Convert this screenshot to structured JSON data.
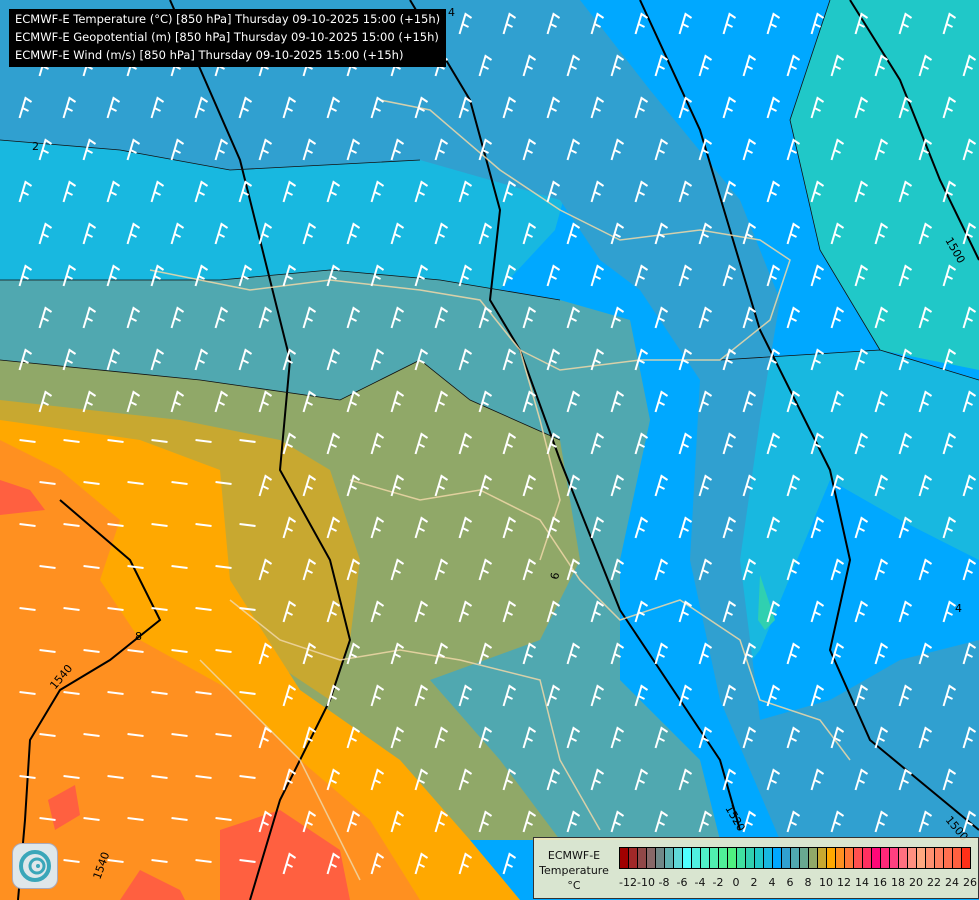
{
  "titles": [
    "ECMWF-E Temperature (°C) [850 hPa] Thursday 09-10-2025 15:00 (+15h)",
    "ECMWF-E Geopotential (m) [850 hPa] Thursday 09-10-2025 15:00 (+15h)",
    "ECMWF-E Wind (m/s) [850 hPa] Thursday 09-10-2025 15:00 (+15h)"
  ],
  "legend": {
    "line1": "ECMWF-E",
    "line2": "Temperature",
    "unit": "°C",
    "tick_labels": [
      "-12",
      "-10",
      "-8",
      "-6",
      "-4",
      "-2",
      "0",
      "2",
      "4",
      "6",
      "8",
      "10",
      "12",
      "14",
      "16",
      "18",
      "20",
      "22",
      "24",
      "26"
    ],
    "colors": [
      "#a00000",
      "#a02828",
      "#904848",
      "#886868",
      "#708888",
      "#60b0b0",
      "#60d8d8",
      "#50ffff",
      "#50f0e0",
      "#50f0c8",
      "#50f0b0",
      "#50f098",
      "#50f080",
      "#40e0a0",
      "#30d0b0",
      "#20c8c8",
      "#18b8e0",
      "#00a8ff",
      "#30a0d0",
      "#50a8b0",
      "#68a890",
      "#90a868",
      "#c8a830",
      "#ffa800",
      "#ff9020",
      "#ff7838",
      "#ff5050",
      "#ff3060",
      "#ff0878",
      "#ff2878",
      "#ff4080",
      "#ff7080",
      "#ff9080",
      "#ffa880",
      "#ff9070",
      "#ff8060",
      "#ff7050",
      "#ff6040",
      "#ff3018"
    ]
  },
  "contour_labels": {
    "geo": [
      "1500",
      "1520",
      "1540",
      "1540",
      "1500"
    ],
    "temp": [
      "4",
      "2",
      "6",
      "4",
      "8"
    ]
  },
  "logo": "ECMWF"
}
